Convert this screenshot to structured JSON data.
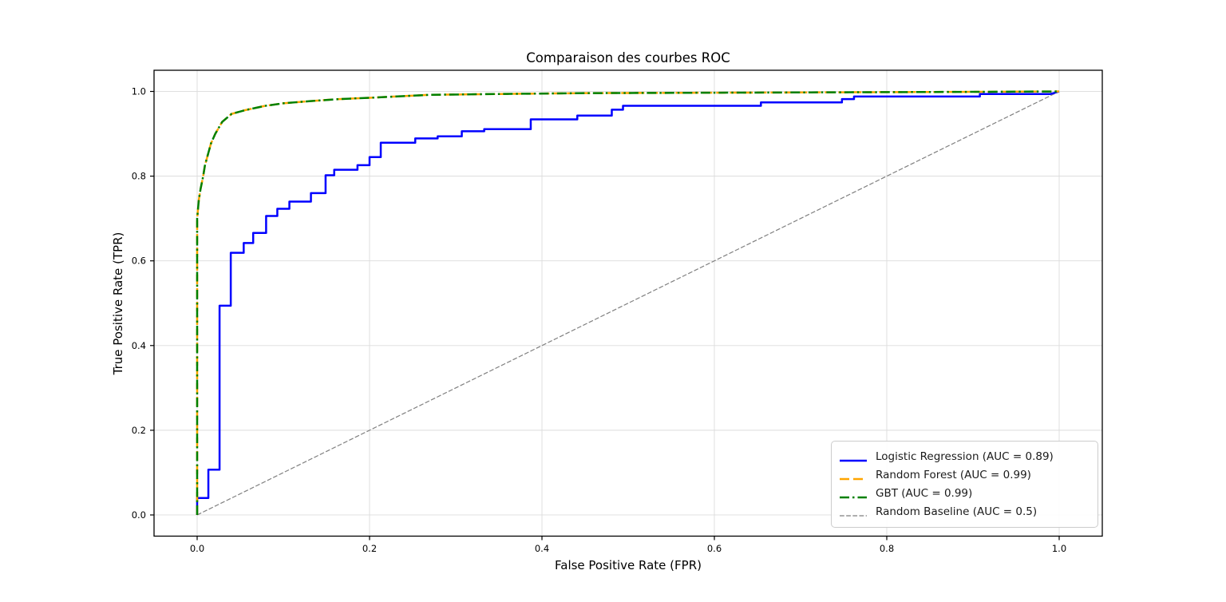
{
  "chart_data": {
    "type": "line",
    "title": "Comparaison des courbes ROC",
    "xlabel": "False Positive Rate (FPR)",
    "ylabel": "True Positive Rate (TPR)",
    "xlim": [
      -0.05,
      1.05
    ],
    "ylim": [
      -0.05,
      1.05
    ],
    "xticks": [
      0.0,
      0.2,
      0.4,
      0.6,
      0.8,
      1.0
    ],
    "yticks": [
      0.0,
      0.2,
      0.4,
      0.6,
      0.8,
      1.0
    ],
    "grid": true,
    "grid_color": "#dcdcdc",
    "spine_color": "#000000",
    "legend_position": "lower right",
    "series": [
      {
        "name": "Logistic Regression (AUC = 0.89)",
        "auc": 0.89,
        "color": "#0000ff",
        "style": "solid",
        "line_width": 2.5,
        "points": [
          [
            0,
            0
          ],
          [
            0,
            0.04
          ],
          [
            0.013,
            0.04
          ],
          [
            0.013,
            0.107
          ],
          [
            0.026,
            0.107
          ],
          [
            0.026,
            0.494
          ],
          [
            0.039,
            0.494
          ],
          [
            0.039,
            0.619
          ],
          [
            0.054,
            0.619
          ],
          [
            0.054,
            0.642
          ],
          [
            0.065,
            0.642
          ],
          [
            0.065,
            0.666
          ],
          [
            0.08,
            0.666
          ],
          [
            0.08,
            0.706
          ],
          [
            0.093,
            0.706
          ],
          [
            0.093,
            0.723
          ],
          [
            0.107,
            0.723
          ],
          [
            0.107,
            0.74
          ],
          [
            0.132,
            0.74
          ],
          [
            0.132,
            0.76
          ],
          [
            0.149,
            0.76
          ],
          [
            0.149,
            0.802
          ],
          [
            0.159,
            0.802
          ],
          [
            0.159,
            0.815
          ],
          [
            0.186,
            0.815
          ],
          [
            0.186,
            0.826
          ],
          [
            0.2,
            0.826
          ],
          [
            0.2,
            0.845
          ],
          [
            0.213,
            0.845
          ],
          [
            0.213,
            0.879
          ],
          [
            0.253,
            0.879
          ],
          [
            0.253,
            0.889
          ],
          [
            0.279,
            0.889
          ],
          [
            0.279,
            0.894
          ],
          [
            0.307,
            0.894
          ],
          [
            0.307,
            0.906
          ],
          [
            0.333,
            0.906
          ],
          [
            0.333,
            0.911
          ],
          [
            0.387,
            0.911
          ],
          [
            0.387,
            0.934
          ],
          [
            0.441,
            0.934
          ],
          [
            0.441,
            0.943
          ],
          [
            0.481,
            0.943
          ],
          [
            0.481,
            0.957
          ],
          [
            0.494,
            0.957
          ],
          [
            0.494,
            0.966
          ],
          [
            0.654,
            0.966
          ],
          [
            0.654,
            0.974
          ],
          [
            0.748,
            0.974
          ],
          [
            0.748,
            0.982
          ],
          [
            0.762,
            0.982
          ],
          [
            0.762,
            0.988
          ],
          [
            0.908,
            0.988
          ],
          [
            0.908,
            0.994
          ],
          [
            0.99,
            0.994
          ],
          [
            1,
            1
          ]
        ]
      },
      {
        "name": "Random Forest (AUC = 0.99)",
        "auc": 0.99,
        "color": "#ffa500",
        "style": "dashed",
        "line_width": 2.5,
        "points": [
          [
            0,
            0
          ],
          [
            0,
            0.7
          ],
          [
            0.002,
            0.745
          ],
          [
            0.004,
            0.77
          ],
          [
            0.007,
            0.8
          ],
          [
            0.009,
            0.825
          ],
          [
            0.011,
            0.84
          ],
          [
            0.016,
            0.877
          ],
          [
            0.021,
            0.9
          ],
          [
            0.029,
            0.928
          ],
          [
            0.04,
            0.947
          ],
          [
            0.056,
            0.956
          ],
          [
            0.079,
            0.966
          ],
          [
            0.1,
            0.972
          ],
          [
            0.13,
            0.977
          ],
          [
            0.165,
            0.982
          ],
          [
            0.2,
            0.985
          ],
          [
            0.24,
            0.989
          ],
          [
            0.27,
            0.992
          ],
          [
            0.35,
            0.994
          ],
          [
            0.45,
            0.996
          ],
          [
            0.6,
            0.997
          ],
          [
            0.75,
            0.998
          ],
          [
            0.9,
            0.999
          ],
          [
            1,
            1
          ]
        ]
      },
      {
        "name": "GBT (AUC = 0.99)",
        "auc": 0.99,
        "color": "#008000",
        "style": "dashdot",
        "line_width": 2.5,
        "points": [
          [
            0,
            0
          ],
          [
            0,
            0.7
          ],
          [
            0.002,
            0.745
          ],
          [
            0.004,
            0.77
          ],
          [
            0.007,
            0.8
          ],
          [
            0.009,
            0.825
          ],
          [
            0.011,
            0.84
          ],
          [
            0.016,
            0.877
          ],
          [
            0.021,
            0.9
          ],
          [
            0.029,
            0.928
          ],
          [
            0.04,
            0.947
          ],
          [
            0.056,
            0.956
          ],
          [
            0.079,
            0.966
          ],
          [
            0.1,
            0.972
          ],
          [
            0.13,
            0.977
          ],
          [
            0.165,
            0.982
          ],
          [
            0.2,
            0.985
          ],
          [
            0.24,
            0.989
          ],
          [
            0.27,
            0.992
          ],
          [
            0.35,
            0.994
          ],
          [
            0.45,
            0.996
          ],
          [
            0.6,
            0.997
          ],
          [
            0.75,
            0.998
          ],
          [
            0.9,
            0.999
          ],
          [
            1,
            1
          ]
        ]
      },
      {
        "name": "Random Baseline (AUC = 0.5)",
        "auc": 0.5,
        "color": "#808080",
        "style": "dashed",
        "line_width": 1.2,
        "points": [
          [
            0,
            0
          ],
          [
            1,
            1
          ]
        ]
      }
    ]
  }
}
